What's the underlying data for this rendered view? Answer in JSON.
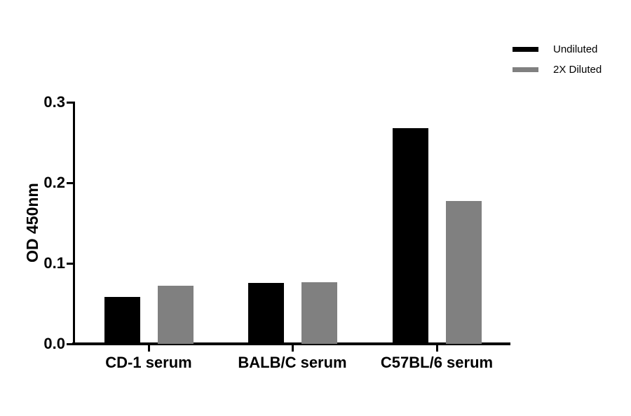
{
  "chart_data": {
    "type": "bar",
    "title": "",
    "xlabel": "",
    "ylabel": "OD 450nm",
    "categories": [
      "CD-1 serum",
      "BALB/C serum",
      "C57BL/6 serum"
    ],
    "series": [
      {
        "name": "Undiluted",
        "color": "#000000",
        "values": [
          0.058,
          0.076,
          0.268
        ]
      },
      {
        "name": "2X Diluted",
        "color": "#808080",
        "values": [
          0.072,
          0.077,
          0.178
        ]
      }
    ],
    "ylim": [
      0.0,
      0.3
    ],
    "yticks": [
      0.0,
      0.1,
      0.2,
      0.3
    ],
    "ytick_labels": [
      "0.0",
      "0.1",
      "0.2",
      "0.3"
    ],
    "grid": false,
    "legend_position": "top-right",
    "background_color": "#ffffff",
    "axis_color": "#000000"
  }
}
